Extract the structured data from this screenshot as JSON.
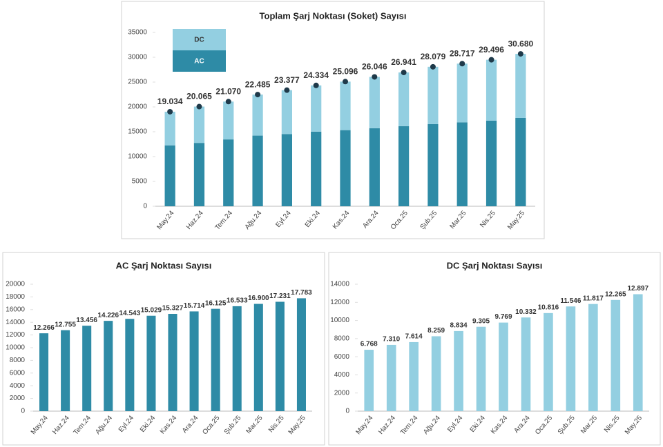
{
  "chart_data": [
    {
      "type": "stacked_bar",
      "title": "Toplam Şarj Noktası (Soket) Sayısı",
      "categories": [
        "May.24",
        "Haz.24",
        "Tem.24",
        "Ağu.24",
        "Eyl.24",
        "Eki.24",
        "Kas.24",
        "Ara.24",
        "Oca.25",
        "Şub.25",
        "Mar.25",
        "Nis.25",
        "May.25"
      ],
      "series": [
        {
          "name": "AC",
          "color": "#2e8ba6",
          "values": [
            12266,
            12755,
            13456,
            14226,
            14543,
            15029,
            15327,
            15714,
            16125,
            16533,
            16900,
            17231,
            17783
          ]
        },
        {
          "name": "DC",
          "color": "#93cfe1",
          "values": [
            6768,
            7310,
            7614,
            8259,
            8834,
            9305,
            9769,
            10332,
            10816,
            11546,
            11817,
            12265,
            12897
          ]
        }
      ],
      "totals": {
        "color": "#1f3a4a",
        "values": [
          19034,
          20065,
          21070,
          22485,
          23377,
          24334,
          25096,
          26046,
          26941,
          28079,
          28717,
          29496,
          30680
        ],
        "value_labels": [
          "19.034",
          "20.065",
          "21.070",
          "22.485",
          "23.377",
          "24.334",
          "25.096",
          "26.046",
          "26.941",
          "28.079",
          "28.717",
          "29.496",
          "30.680"
        ]
      },
      "ylim": [
        0,
        35000
      ],
      "yticks": [
        0,
        5000,
        10000,
        15000,
        20000,
        25000,
        30000,
        35000
      ],
      "legend": "top-left"
    },
    {
      "type": "bar",
      "title": "AC Şarj Noktası Sayısı",
      "color": "#2e8ba6",
      "categories": [
        "May.24",
        "Haz.24",
        "Tem.24",
        "Ağu.24",
        "Eyl.24",
        "Eki.24",
        "Kas.24",
        "Ara.24",
        "Oca.25",
        "Şub.25",
        "Mar.25",
        "Nis.25",
        "May.25"
      ],
      "values": [
        12266,
        12755,
        13456,
        14226,
        14543,
        15029,
        15327,
        15714,
        16125,
        16533,
        16900,
        17231,
        17783
      ],
      "value_labels": [
        "12.266",
        "12.755",
        "13.456",
        "14.226",
        "14.543",
        "15.029",
        "15.327",
        "15.714",
        "16.125",
        "16.533",
        "16.900",
        "17.231",
        "17.783"
      ],
      "ylim": [
        0,
        20000
      ],
      "yticks": [
        0,
        2000,
        4000,
        6000,
        8000,
        10000,
        12000,
        14000,
        16000,
        18000,
        20000
      ]
    },
    {
      "type": "bar",
      "title": "DC Şarj Noktası Sayısı",
      "color": "#93cfe1",
      "categories": [
        "May.24",
        "Haz.24",
        "Tem.24",
        "Ağu.24",
        "Eyl.24",
        "Eki.24",
        "Kas.24",
        "Ara.24",
        "Oca.25",
        "Şub.25",
        "Mar.25",
        "Nis.25",
        "May.25"
      ],
      "values": [
        6768,
        7310,
        7614,
        8259,
        8834,
        9305,
        9769,
        10332,
        10816,
        11546,
        11817,
        12265,
        12897
      ],
      "value_labels": [
        "6.768",
        "7.310",
        "7.614",
        "8.259",
        "8.834",
        "9.305",
        "9.769",
        "10.332",
        "10.816",
        "11.546",
        "11.817",
        "12.265",
        "12.897"
      ],
      "ylim": [
        0,
        14000
      ],
      "yticks": [
        0,
        2000,
        4000,
        6000,
        8000,
        10000,
        12000,
        14000
      ]
    }
  ]
}
